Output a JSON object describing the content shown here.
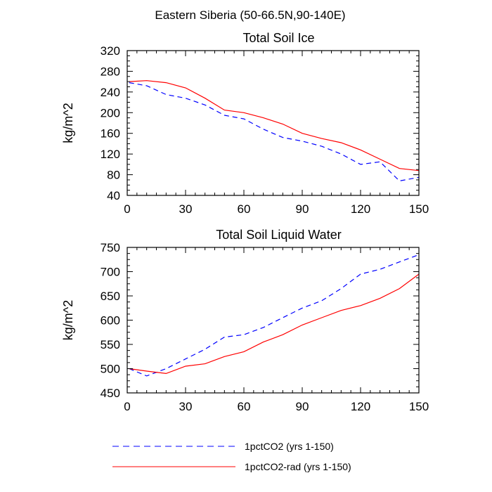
{
  "figure": {
    "suptitle": "Eastern Siberia (50-66.5N,90-140E)"
  },
  "legend": {
    "placement": "bottom",
    "entries": [
      {
        "label": "1pctCO2 (yrs 1-150)",
        "color": "#0000ff",
        "dash": "dashed"
      },
      {
        "label": "1pctCO2-rad (yrs 1-150)",
        "color": "#ff0000",
        "dash": "solid"
      }
    ]
  },
  "chart_data": [
    {
      "type": "line",
      "title": "Total Soil Ice",
      "xlabel": "",
      "ylabel": "kg/m^2",
      "xlim": [
        0,
        150
      ],
      "ylim": [
        40,
        320
      ],
      "xticks": [
        0,
        30,
        60,
        90,
        120,
        150
      ],
      "yticks": [
        40,
        80,
        120,
        160,
        200,
        240,
        280,
        320
      ],
      "grid": false,
      "x": [
        1,
        10,
        20,
        30,
        40,
        50,
        60,
        70,
        80,
        90,
        100,
        110,
        120,
        130,
        140,
        150
      ],
      "series": [
        {
          "name": "1pctCO2 (yrs 1-150)",
          "color": "#0000ff",
          "dash": "dashed",
          "values": [
            258,
            252,
            235,
            228,
            215,
            195,
            188,
            168,
            152,
            145,
            135,
            120,
            100,
            105,
            68,
            75
          ]
        },
        {
          "name": "1pctCO2-rad (yrs 1-150)",
          "color": "#ff0000",
          "dash": "solid",
          "values": [
            260,
            262,
            258,
            248,
            228,
            205,
            200,
            190,
            178,
            160,
            150,
            142,
            128,
            110,
            92,
            88
          ]
        }
      ]
    },
    {
      "type": "line",
      "title": "Total Soil Liquid Water",
      "xlabel": "",
      "ylabel": "kg/m^2",
      "xlim": [
        0,
        150
      ],
      "ylim": [
        450,
        750
      ],
      "xticks": [
        0,
        30,
        60,
        90,
        120,
        150
      ],
      "yticks": [
        450,
        500,
        550,
        600,
        650,
        700,
        750
      ],
      "grid": false,
      "x": [
        1,
        10,
        20,
        30,
        40,
        50,
        60,
        70,
        80,
        90,
        100,
        110,
        120,
        130,
        140,
        150
      ],
      "series": [
        {
          "name": "1pctCO2 (yrs 1-150)",
          "color": "#0000ff",
          "dash": "dashed",
          "values": [
            500,
            485,
            500,
            520,
            540,
            565,
            570,
            585,
            605,
            625,
            640,
            665,
            695,
            705,
            720,
            735
          ]
        },
        {
          "name": "1pctCO2-rad (yrs 1-150)",
          "color": "#ff0000",
          "dash": "solid",
          "values": [
            500,
            495,
            490,
            505,
            510,
            525,
            535,
            555,
            570,
            590,
            605,
            620,
            630,
            645,
            665,
            695
          ]
        }
      ]
    }
  ]
}
